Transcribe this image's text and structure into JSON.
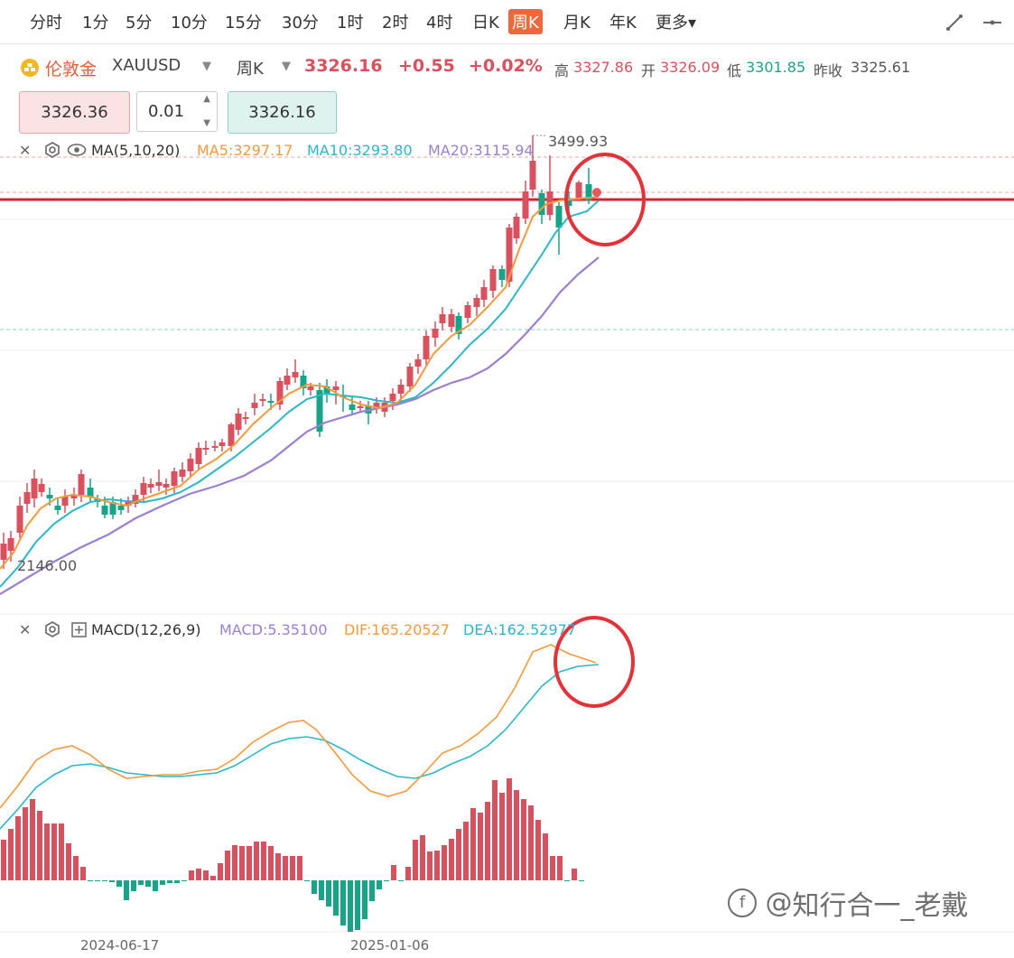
{
  "periods": [
    "分时",
    "1分",
    "5分",
    "10分",
    "15分",
    "30分",
    "1时",
    "2时",
    "4时",
    "日K",
    "周K",
    "月K",
    "年K",
    "更多"
  ],
  "active_period": "周K",
  "instrument": {
    "name": "伦敦金",
    "symbol": "XAUUSD",
    "period": "周K",
    "price": "3326.16",
    "change": "+0.55",
    "change_pct": "+0.02%",
    "high_label": "高",
    "high": "3327.86",
    "open_label": "开",
    "open": "3326.09",
    "low_label": "低",
    "low": "3301.85",
    "prev_label": "昨收",
    "prev_close": "3325.61"
  },
  "order": {
    "sell_price": "3326.36",
    "lot": "0.01",
    "buy_price": "3326.16"
  },
  "ma_legend": {
    "title": "MA(5,10,20)",
    "ma5": "MA5:3297.17",
    "ma10": "MA10:3293.80",
    "ma20": "MA20:3115.94",
    "colors": {
      "ma5": "#f39a3c",
      "ma10": "#2bb7c8",
      "ma20": "#9b7fd0"
    }
  },
  "price_annotations": {
    "high": "3499.93",
    "low": "2146.00"
  },
  "macd_legend": {
    "title": "MACD(12,26,9)",
    "macd": "MACD:5.35100",
    "dif": "DIF:165.20527",
    "dea": "DEA:162.52977"
  },
  "x_axis": [
    "2024-06-17",
    "2025-01-06"
  ],
  "watermark": "知行合一_老戴",
  "colors": {
    "up": "#d9505e",
    "down": "#17a589",
    "accent": "#f0673c",
    "circle": "#e3323a"
  },
  "chart_data": {
    "type": "candlestick",
    "series": [
      {
        "name": "MA5"
      },
      {
        "name": "MA10"
      },
      {
        "name": "MA20"
      }
    ],
    "price_high": 3499.93,
    "price_low": 2146.0,
    "indicator": {
      "name": "MACD(12,26,9)",
      "macd": 5.351,
      "dif": 165.20527,
      "dea": 162.52977
    }
  }
}
